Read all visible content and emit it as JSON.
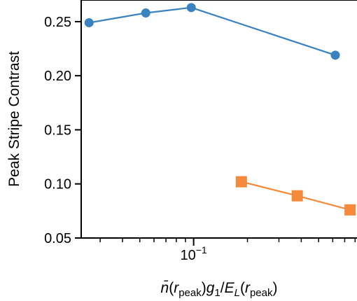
{
  "chart_data": {
    "type": "line",
    "x_scale": "log",
    "xlim": [
      0.0235,
      0.82
    ],
    "ylim": [
      0.05,
      0.27
    ],
    "grid": false,
    "ylabel": "Peak Stripe Contrast",
    "xlabel_parts": {
      "nbar": "n̄",
      "r": "r",
      "peak": "peak",
      "g": "g",
      "one": "1",
      "slash": "/",
      "E": "E",
      "L": "L",
      "lparen": "(",
      "rparen": ")"
    },
    "yticks": [
      0.05,
      0.1,
      0.15,
      0.2,
      0.25
    ],
    "ytick_labels": [
      "0.05",
      "0.10",
      "0.15",
      "0.20",
      "0.25"
    ],
    "xticks_major": [
      0.1
    ],
    "xtick_labels": {
      "base": "10",
      "exp": "−1"
    },
    "xticks_minor": [
      0.03,
      0.04,
      0.05,
      0.06,
      0.07,
      0.08,
      0.09,
      0.2,
      0.3,
      0.4,
      0.5,
      0.6,
      0.7,
      0.8
    ],
    "series": [
      {
        "color": "#3b82c0",
        "marker": "circle",
        "x": [
          0.026,
          0.054,
          0.097,
          0.62
        ],
        "y": [
          0.249,
          0.258,
          0.263,
          0.219
        ]
      },
      {
        "color": "#f58a3c",
        "marker": "square",
        "x": [
          0.185,
          0.38,
          0.75
        ],
        "y": [
          0.102,
          0.089,
          0.076
        ]
      }
    ]
  }
}
